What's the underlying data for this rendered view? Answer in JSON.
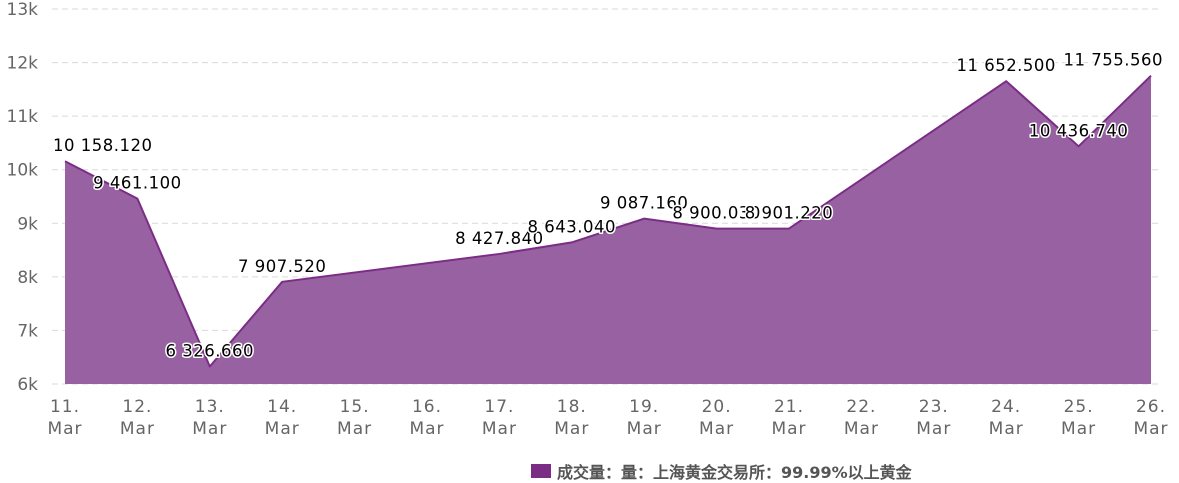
{
  "chart_data": {
    "type": "area",
    "title": "",
    "xlabel": "",
    "ylabel": "",
    "categories": [
      "11. Mar",
      "12. Mar",
      "13. Mar",
      "14. Mar",
      "15. Mar",
      "16. Mar",
      "17. Mar",
      "18. Mar",
      "19. Mar",
      "20. Mar",
      "21. Mar",
      "22. Mar",
      "23. Mar",
      "24. Mar",
      "25. Mar",
      "26. Mar"
    ],
    "category_lines": [
      [
        "11.",
        "Mar"
      ],
      [
        "12.",
        "Mar"
      ],
      [
        "13.",
        "Mar"
      ],
      [
        "14.",
        "Mar"
      ],
      [
        "15.",
        "Mar"
      ],
      [
        "16.",
        "Mar"
      ],
      [
        "17.",
        "Mar"
      ],
      [
        "18.",
        "Mar"
      ],
      [
        "19.",
        "Mar"
      ],
      [
        "20.",
        "Mar"
      ],
      [
        "21.",
        "Mar"
      ],
      [
        "22.",
        "Mar"
      ],
      [
        "23.",
        "Mar"
      ],
      [
        "24.",
        "Mar"
      ],
      [
        "25.",
        "Mar"
      ],
      [
        "26.",
        "Mar"
      ]
    ],
    "series": [
      {
        "name": "成交量：量：上海黄金交易所：99.99%以上黄金",
        "color": "#7b2d86",
        "fill_color": "#9862a2",
        "points": [
          {
            "x": "11. Mar",
            "y": 10158.12,
            "label": "10 158.120"
          },
          {
            "x": "12. Mar",
            "y": 9461.1,
            "label": "9 461.100"
          },
          {
            "x": "13. Mar",
            "y": 6326.66,
            "label": "6 326.660"
          },
          {
            "x": "14. Mar",
            "y": 7907.52,
            "label": "7 907.520"
          },
          {
            "x": "17. Mar",
            "y": 8427.84,
            "label": "8 427.840"
          },
          {
            "x": "18. Mar",
            "y": 8643.04,
            "label": "8 643.040"
          },
          {
            "x": "19. Mar",
            "y": 9087.16,
            "label": "9 087.160"
          },
          {
            "x": "20. Mar",
            "y": 8900.03,
            "label": "8 900.030"
          },
          {
            "x": "21. Mar",
            "y": 8901.22,
            "label": "8 901.220"
          },
          {
            "x": "24. Mar",
            "y": 11652.5,
            "label": "11 652.500"
          },
          {
            "x": "25. Mar",
            "y": 10436.74,
            "label": "10 436.740"
          },
          {
            "x": "26. Mar",
            "y": 11755.56,
            "label": "11 755.560"
          }
        ]
      }
    ],
    "ylim": [
      6000,
      13000
    ],
    "yticks": [
      6000,
      7000,
      8000,
      9000,
      10000,
      11000,
      12000,
      13000
    ],
    "ytick_labels": [
      "6k",
      "7k",
      "8k",
      "9k",
      "10k",
      "11k",
      "12k",
      "13k"
    ],
    "grid": true,
    "legend_position": "bottom-center"
  },
  "legend": {
    "label": "成交量：量：上海黄金交易所：99.99%以上黄金",
    "swatch_color": "#7b2d86"
  }
}
